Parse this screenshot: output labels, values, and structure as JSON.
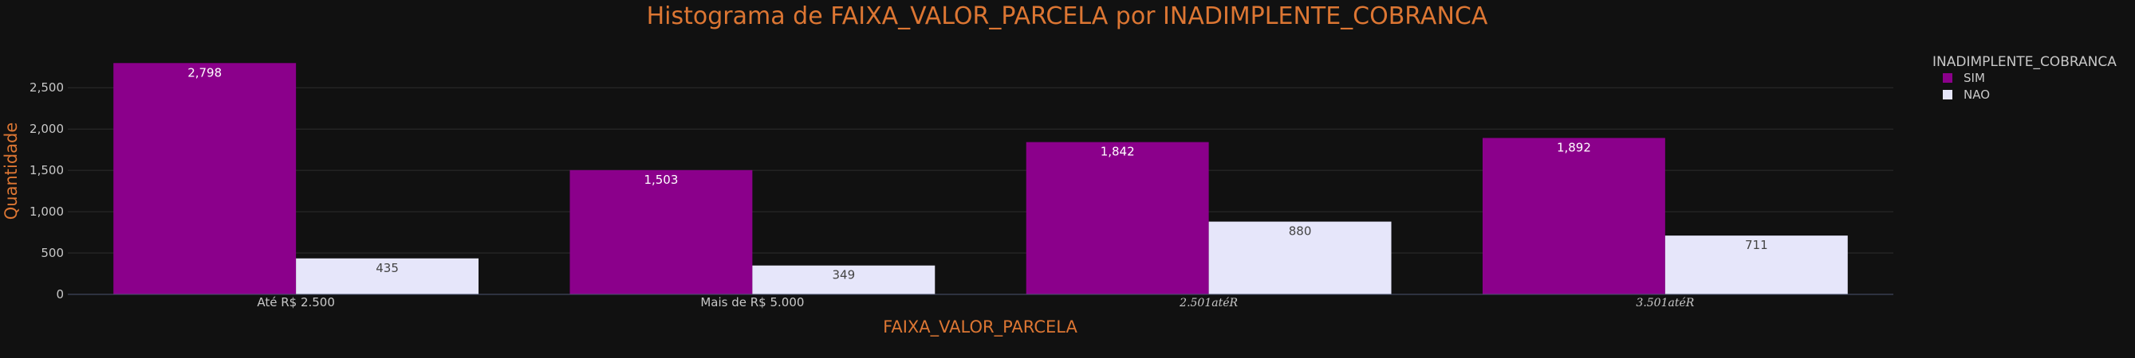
{
  "chart_data": {
    "type": "bar",
    "title": "Histograma de FAIXA_VALOR_PARCELA por INADIMPLENTE_COBRANCA",
    "xlabel": "FAIXA_VALOR_PARCELA",
    "ylabel": "Quantidade",
    "categories": [
      "Até R$ 2.500",
      "Mais de R$ 5.000",
      "2.501atéR",
      "3.501atéR"
    ],
    "series": [
      {
        "name": "SIM",
        "values": [
          2798,
          1503,
          1842,
          1892
        ],
        "labels": [
          "2,798",
          "1,503",
          "1,842",
          "1,892"
        ],
        "color": "#8B008B",
        "label_color": "#ffffff"
      },
      {
        "name": "NAO",
        "values": [
          435,
          349,
          880,
          711
        ],
        "labels": [
          "435",
          "349",
          "880",
          "711"
        ],
        "color": "#E6E6FA",
        "label_color": "#444444"
      }
    ],
    "ylim": [
      0,
      2945
    ],
    "yticks": [
      0,
      500,
      1000,
      1500,
      2000,
      2500
    ],
    "ytick_labels": [
      "0",
      "500",
      "1,000",
      "1,500",
      "2,000",
      "2,500"
    ],
    "grid": true,
    "legend_title": "INADIMPLENTE_COBRANCA",
    "legend_position": "top-right"
  },
  "colors": {
    "background": "#111111",
    "grid": "#2d2d2d",
    "axis_line": "#4a5470",
    "title": "#DC7633",
    "tick_text": "#c8c8c8",
    "legend_text": "#c8c8c8"
  }
}
